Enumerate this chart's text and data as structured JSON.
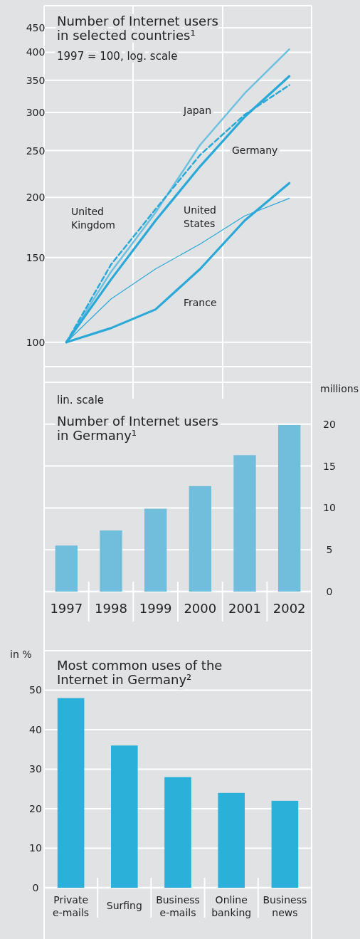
{
  "chart_data": [
    {
      "type": "line",
      "title": "Number of Internet users in selected countries¹",
      "subtitle": "1997 = 100, log. scale",
      "categories": [
        null,
        null,
        null,
        null,
        null,
        null
      ],
      "ylim": [
        89,
        500
      ],
      "yticks": [
        100,
        150,
        200,
        250,
        300,
        350,
        400,
        450
      ],
      "log": true,
      "grid": "y",
      "tick_labels": "y",
      "series": [
        {
          "name": "Japan",
          "color": "#6cc0e0",
          "values": [
            100,
            140,
            186,
            257,
            329,
            406
          ]
        },
        {
          "name": "Germany",
          "color": "#2aa9d8",
          "values": [
            100,
            135,
            179,
            232,
            294,
            357
          ]
        },
        {
          "name": "United Kingdom",
          "color": "#2aa9d8",
          "line_style": "dashed",
          "values": [
            100,
            145,
            189,
            245,
            297,
            342
          ]
        },
        {
          "name": "United States",
          "color": "#2aa9d8",
          "values": [
            100,
            123,
            142,
            160,
            183,
            199
          ]
        },
        {
          "name": "France",
          "color": "#2aa9d8",
          "values": [
            100,
            107,
            117,
            142,
            179,
            214
          ]
        }
      ]
    },
    {
      "type": "bar",
      "title": "Number of Internet users in Germany¹",
      "annotations": [
        "lin. scale"
      ],
      "ylabel": "millions",
      "categories": [
        "1997",
        "1998",
        "1999",
        "2000",
        "2001",
        "2002"
      ],
      "values": [
        5.5,
        7.3,
        9.9,
        12.6,
        16.3,
        19.9
      ],
      "color": "#70bddc",
      "ylim": [
        0,
        25
      ],
      "yticks": [
        0,
        5,
        10,
        15,
        20,
        {
          "value": 25,
          "label": null
        }
      ],
      "grid": "y"
    },
    {
      "type": "bar",
      "title": "Most common uses of the Internet in Germany²",
      "ylabel": "in %",
      "categories": [
        "Private e-mails",
        "Surfing",
        "Business e-mails",
        "Online banking",
        "Business news"
      ],
      "values": [
        48,
        36,
        28,
        24,
        22
      ],
      "color": "#2bb0da",
      "ylim": [
        0,
        60
      ],
      "yticks": [
        0,
        10,
        20,
        30,
        40,
        50,
        {
          "value": 60,
          "label": null
        }
      ],
      "grid": "y"
    }
  ]
}
